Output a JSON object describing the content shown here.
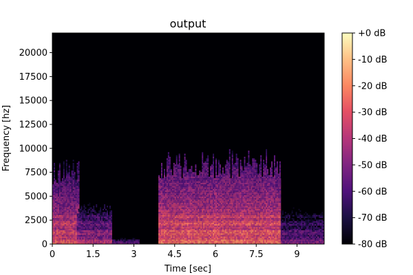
{
  "chart_data": {
    "type": "heatmap",
    "title": "output",
    "xlabel": "Time [sec]",
    "ylabel": "Frequency [hz]",
    "xlim": [
      0,
      10
    ],
    "ylim": [
      0,
      22050
    ],
    "x_ticks": [
      {
        "value": 0,
        "label": "0"
      },
      {
        "value": 1.5,
        "label": "1.5"
      },
      {
        "value": 3,
        "label": "3"
      },
      {
        "value": 4.5,
        "label": "4.5"
      },
      {
        "value": 6,
        "label": "6"
      },
      {
        "value": 7.5,
        "label": "7.5"
      },
      {
        "value": 9,
        "label": "9"
      }
    ],
    "y_ticks": [
      {
        "value": 0,
        "label": "0"
      },
      {
        "value": 2500,
        "label": "2500"
      },
      {
        "value": 5000,
        "label": "5000"
      },
      {
        "value": 7500,
        "label": "7500"
      },
      {
        "value": 10000,
        "label": "10000"
      },
      {
        "value": 12500,
        "label": "12500"
      },
      {
        "value": 15000,
        "label": "15000"
      },
      {
        "value": 17500,
        "label": "17500"
      },
      {
        "value": 20000,
        "label": "20000"
      }
    ],
    "colorbar": {
      "colormap": "magma",
      "range_db": [
        -80,
        0
      ],
      "ticks": [
        {
          "value": 0,
          "label": "+0 dB"
        },
        {
          "value": -10,
          "label": "-10 dB"
        },
        {
          "value": -20,
          "label": "-20 dB"
        },
        {
          "value": -30,
          "label": "-30 dB"
        },
        {
          "value": -40,
          "label": "-40 dB"
        },
        {
          "value": -50,
          "label": "-50 dB"
        },
        {
          "value": -60,
          "label": "-60 dB"
        },
        {
          "value": -70,
          "label": "-70 dB"
        },
        {
          "value": -80,
          "label": "-80 dB"
        }
      ]
    },
    "segments": [
      {
        "t_start": 0.0,
        "t_end": 1.0,
        "max_freq": 8300,
        "level_db": -35
      },
      {
        "t_start": 0.9,
        "t_end": 2.2,
        "max_freq": 4000,
        "level_db": -45
      },
      {
        "t_start": 2.2,
        "t_end": 3.2,
        "max_freq": 800,
        "level_db": -62
      },
      {
        "t_start": 3.9,
        "t_end": 8.4,
        "max_freq": 9000,
        "level_db": -30
      },
      {
        "t_start": 8.4,
        "t_end": 10.0,
        "max_freq": 4000,
        "level_db": -55
      }
    ],
    "grid": false
  }
}
